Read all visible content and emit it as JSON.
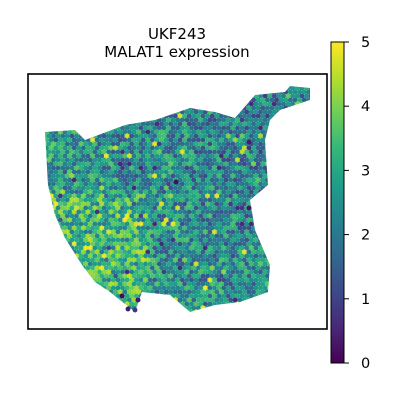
{
  "chart_data": {
    "type": "scatter",
    "title_line1": "UKF243",
    "title_line2": "MALAT1 expression",
    "xlabel": "",
    "ylabel": "",
    "colorbar": {
      "min": 0,
      "max": 5,
      "ticks": [
        "0",
        "1",
        "2",
        "3",
        "4",
        "5"
      ],
      "colormap": "viridis",
      "colors": [
        "#440154",
        "#482878",
        "#3e4989",
        "#31688e",
        "#26828e",
        "#1f9e89",
        "#35b779",
        "#6ece58",
        "#b5de2b",
        "#fde725"
      ]
    },
    "value_summary": {
      "typical_range": [
        1.5,
        4.0
      ],
      "high_values_near": "left and lower-center of tissue",
      "low_outliers": [
        0,
        0.5
      ]
    }
  }
}
